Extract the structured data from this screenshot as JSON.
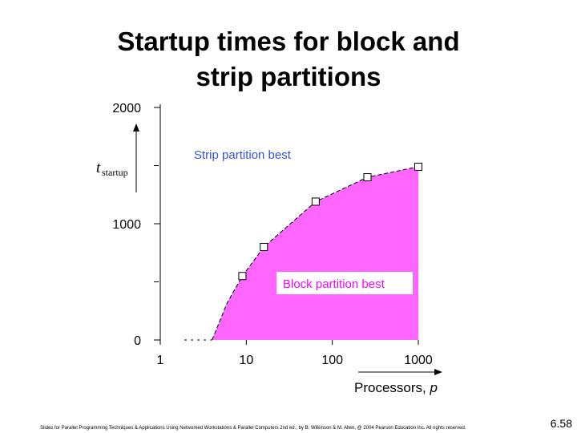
{
  "slide": {
    "title_line1": "Startup times for block and",
    "title_line2": "strip partitions",
    "footer": "Slides for Parallel Programming Techniques & Applications Using Networked Workstations & Parallel Computers 2nd ed., by B. Wilkinson & M. Allen, @ 2004 Pearson Education Inc. All rights reserved.",
    "slide_number": "6.58"
  },
  "chart_data": {
    "type": "area",
    "x_scale": "log",
    "xlim": [
      1,
      1000
    ],
    "ylim": [
      0,
      2000
    ],
    "x_ticks": [
      "1",
      "10",
      "100",
      "1000"
    ],
    "y_ticks": [
      "0",
      "1000",
      "2000"
    ],
    "ylabel_main": "t",
    "ylabel_sub": "startup",
    "xlabel_main": "Processors, ",
    "xlabel_var": "p",
    "fill_color": "#ff66ff",
    "annotations": {
      "upper": "Strip partition best",
      "lower": "Block partition best",
      "upper_color": "#3355dd",
      "lower_color": "#ff00ff"
    },
    "curve": {
      "x": [
        4,
        6,
        9,
        16,
        64,
        256,
        1000
      ],
      "y": [
        0,
        320,
        550,
        800,
        1190,
        1400,
        1490
      ]
    },
    "markers": {
      "x": [
        9,
        16,
        64,
        256,
        1000
      ],
      "y": [
        550,
        800,
        1190,
        1400,
        1490
      ]
    }
  }
}
